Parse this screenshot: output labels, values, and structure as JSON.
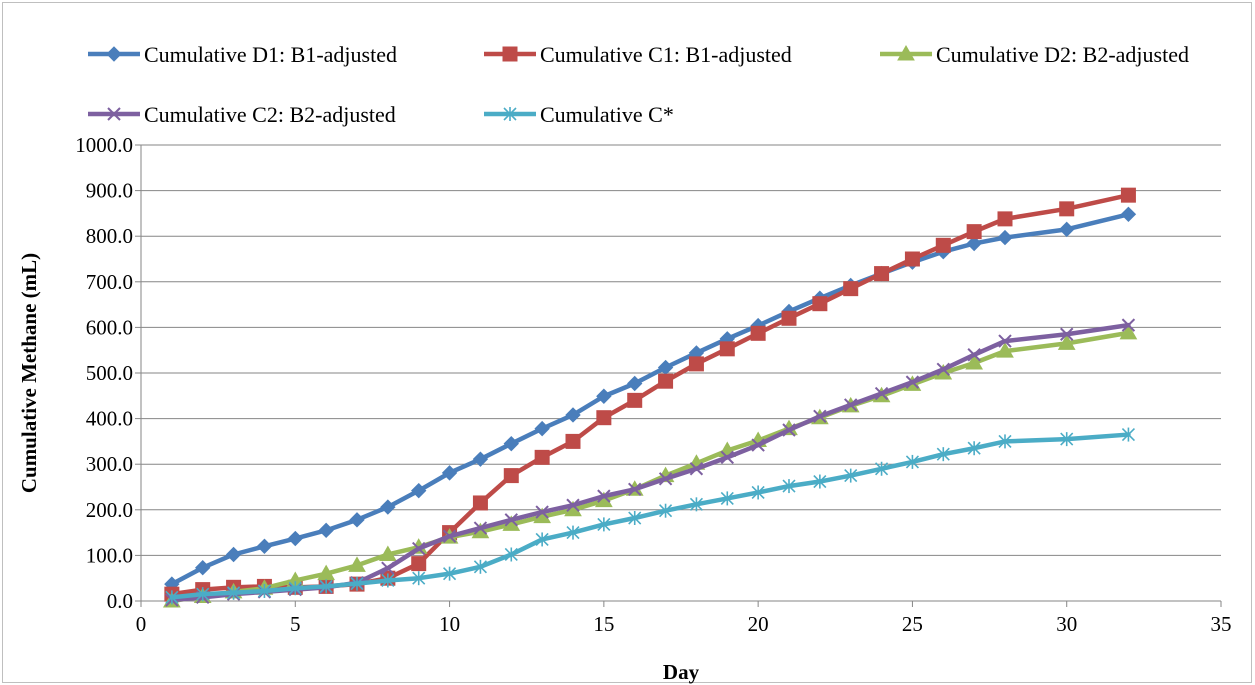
{
  "chart_data": {
    "type": "line",
    "xlabel": "Day",
    "ylabel": "Cumulative Methane (mL)",
    "xlim": [
      0,
      35
    ],
    "ylim": [
      0,
      1000
    ],
    "xticks": [
      "0",
      "5",
      "10",
      "15",
      "20",
      "25",
      "30",
      "35"
    ],
    "yticks": [
      "0.0",
      "100.0",
      "200.0",
      "300.0",
      "400.0",
      "500.0",
      "600.0",
      "700.0",
      "800.0",
      "900.0",
      "1000.0"
    ],
    "grid": "horizontal",
    "legend_position": "top",
    "series": [
      {
        "name": "Cumulative D1: B1-adjusted",
        "color": "#4A7EBB",
        "marker": "diamond",
        "x": [
          1,
          2,
          3,
          4,
          5,
          6,
          7,
          8,
          9,
          10,
          11,
          12,
          13,
          14,
          15,
          16,
          17,
          18,
          19,
          20,
          21,
          22,
          23,
          24,
          25,
          26,
          27,
          28,
          30,
          32
        ],
        "y": [
          37,
          73,
          102,
          120,
          137,
          155,
          178,
          206,
          242,
          281,
          311,
          345,
          378,
          408,
          449,
          477,
          512,
          544,
          575,
          604,
          635,
          664,
          692,
          718,
          743,
          766,
          784,
          797,
          815,
          848
        ]
      },
      {
        "name": "Cumulative C1: B1-adjusted",
        "color": "#BE4B48",
        "marker": "square",
        "x": [
          1,
          2,
          3,
          4,
          5,
          6,
          7,
          8,
          9,
          10,
          11,
          12,
          13,
          14,
          15,
          16,
          17,
          18,
          19,
          20,
          21,
          22,
          23,
          24,
          25,
          26,
          27,
          28,
          30,
          32
        ],
        "y": [
          15,
          25,
          30,
          32,
          30,
          32,
          37,
          50,
          82,
          150,
          215,
          275,
          315,
          350,
          402,
          440,
          482,
          520,
          553,
          587,
          620,
          652,
          685,
          718,
          750,
          780,
          810,
          838,
          860,
          890
        ]
      },
      {
        "name": "Cumulative D2: B2-adjusted",
        "color": "#9BBB59",
        "marker": "triangle",
        "x": [
          1,
          2,
          3,
          4,
          5,
          6,
          7,
          8,
          9,
          10,
          11,
          12,
          13,
          14,
          15,
          16,
          17,
          18,
          19,
          20,
          21,
          22,
          23,
          24,
          25,
          26,
          27,
          28,
          30,
          32
        ],
        "y": [
          0,
          10,
          20,
          28,
          45,
          60,
          78,
          102,
          118,
          140,
          152,
          168,
          185,
          200,
          220,
          245,
          275,
          302,
          330,
          352,
          378,
          402,
          428,
          450,
          475,
          500,
          522,
          548,
          565,
          588
        ]
      },
      {
        "name": "Cumulative C2: B2-adjusted",
        "color": "#7D60A0",
        "marker": "x",
        "x": [
          1,
          2,
          3,
          4,
          5,
          6,
          7,
          8,
          9,
          10,
          11,
          12,
          13,
          14,
          15,
          16,
          17,
          18,
          19,
          20,
          21,
          22,
          23,
          24,
          25,
          26,
          27,
          28,
          30,
          32
        ],
        "y": [
          2,
          8,
          15,
          20,
          25,
          30,
          40,
          72,
          115,
          142,
          160,
          178,
          195,
          210,
          230,
          245,
          268,
          290,
          315,
          342,
          375,
          405,
          430,
          455,
          480,
          508,
          540,
          570,
          585,
          605
        ]
      },
      {
        "name": "Cumulative C*",
        "color": "#4BACC6",
        "marker": "asterisk",
        "x": [
          1,
          2,
          3,
          4,
          5,
          6,
          7,
          8,
          9,
          10,
          11,
          12,
          13,
          14,
          15,
          16,
          17,
          18,
          19,
          20,
          21,
          22,
          23,
          24,
          25,
          26,
          27,
          28,
          30,
          32
        ],
        "y": [
          8,
          15,
          18,
          22,
          28,
          32,
          38,
          45,
          50,
          60,
          75,
          102,
          135,
          150,
          168,
          182,
          198,
          212,
          225,
          238,
          252,
          262,
          275,
          290,
          305,
          322,
          335,
          350,
          355,
          365
        ]
      }
    ]
  }
}
